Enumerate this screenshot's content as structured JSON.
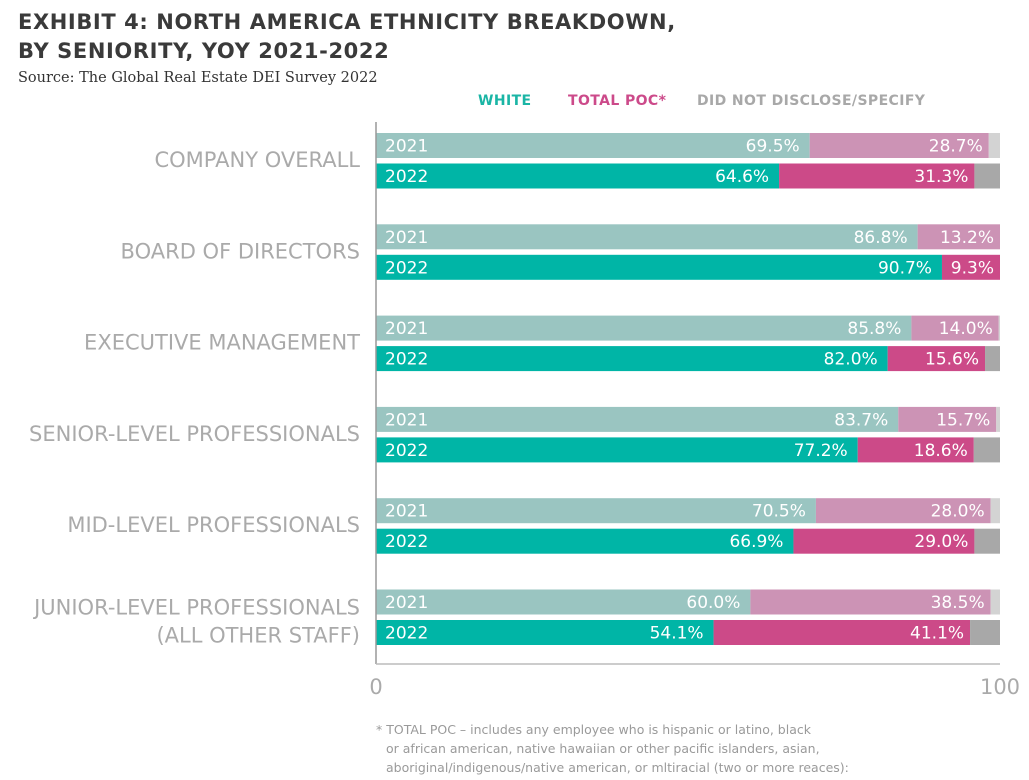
{
  "chart_data": {
    "type": "bar",
    "orientation": "horizontal",
    "stacked": true,
    "title_lines": [
      "EXHIBIT 4: NORTH AMERICA ETHNICITY BREAKDOWN,",
      "BY SENIORITY, YOY 2021-2022"
    ],
    "source": "Source: The Global Real Estate DEI Survey 2022",
    "legend": [
      {
        "label": "WHITE",
        "color": "#1ab5a5"
      },
      {
        "label": "TOTAL POC*",
        "color": "#cc4a8a"
      },
      {
        "label": "DID NOT DISCLOSE/SPECIFY",
        "color": "#a8a8a8"
      }
    ],
    "xlim": [
      0,
      100
    ],
    "x_ticks": [
      "0",
      "100"
    ],
    "colors": {
      "white_2021": "#9ac5c1",
      "white_2022": "#00b5a6",
      "poc_2021": "#cc93b5",
      "poc_2022": "#cc4a88",
      "nd_2021": "#d3d3d3",
      "nd_2022": "#a8a8a8"
    },
    "categories": [
      {
        "lines": [
          "COMPANY OVERALL"
        ],
        "rows": [
          {
            "year": "2021",
            "white": 69.5,
            "poc": 28.7,
            "white_label": "69.5%",
            "poc_label": "28.7%"
          },
          {
            "year": "2022",
            "white": 64.6,
            "poc": 31.3,
            "white_label": "64.6%",
            "poc_label": "31.3%"
          }
        ]
      },
      {
        "lines": [
          "BOARD OF DIRECTORS"
        ],
        "rows": [
          {
            "year": "2021",
            "white": 86.8,
            "poc": 13.2,
            "white_label": "86.8%",
            "poc_label": "13.2%"
          },
          {
            "year": "2022",
            "white": 90.7,
            "poc": 9.3,
            "white_label": "90.7%",
            "poc_label": "9.3%"
          }
        ]
      },
      {
        "lines": [
          "EXECUTIVE MANAGEMENT"
        ],
        "rows": [
          {
            "year": "2021",
            "white": 85.8,
            "poc": 14.0,
            "white_label": "85.8%",
            "poc_label": "14.0%"
          },
          {
            "year": "2022",
            "white": 82.0,
            "poc": 15.6,
            "white_label": "82.0%",
            "poc_label": "15.6%"
          }
        ]
      },
      {
        "lines": [
          "SENIOR-LEVEL PROFESSIONALS"
        ],
        "rows": [
          {
            "year": "2021",
            "white": 83.7,
            "poc": 15.7,
            "white_label": "83.7%",
            "poc_label": "15.7%"
          },
          {
            "year": "2022",
            "white": 77.2,
            "poc": 18.6,
            "white_label": "77.2%",
            "poc_label": "18.6%"
          }
        ]
      },
      {
        "lines": [
          "MID-LEVEL PROFESSIONALS"
        ],
        "rows": [
          {
            "year": "2021",
            "white": 70.5,
            "poc": 28.0,
            "white_label": "70.5%",
            "poc_label": "28.0%"
          },
          {
            "year": "2022",
            "white": 66.9,
            "poc": 29.0,
            "white_label": "66.9%",
            "poc_label": "29.0%"
          }
        ]
      },
      {
        "lines": [
          "JUNIOR-LEVEL PROFESSIONALS",
          "(ALL OTHER STAFF)"
        ],
        "rows": [
          {
            "year": "2021",
            "white": 60.0,
            "poc": 38.5,
            "white_label": "60.0%",
            "poc_label": "38.5%"
          },
          {
            "year": "2022",
            "white": 54.1,
            "poc": 41.1,
            "white_label": "54.1%",
            "poc_label": "41.1%"
          }
        ]
      }
    ],
    "footnote_lines": [
      "* TOTAL POC – includes any employee who is hispanic or latino, black",
      "or african american, native hawaiian or other pacific islanders, asian,",
      "aboriginal/indigenous/native american, or mltiracial (two or more reaces):"
    ]
  }
}
